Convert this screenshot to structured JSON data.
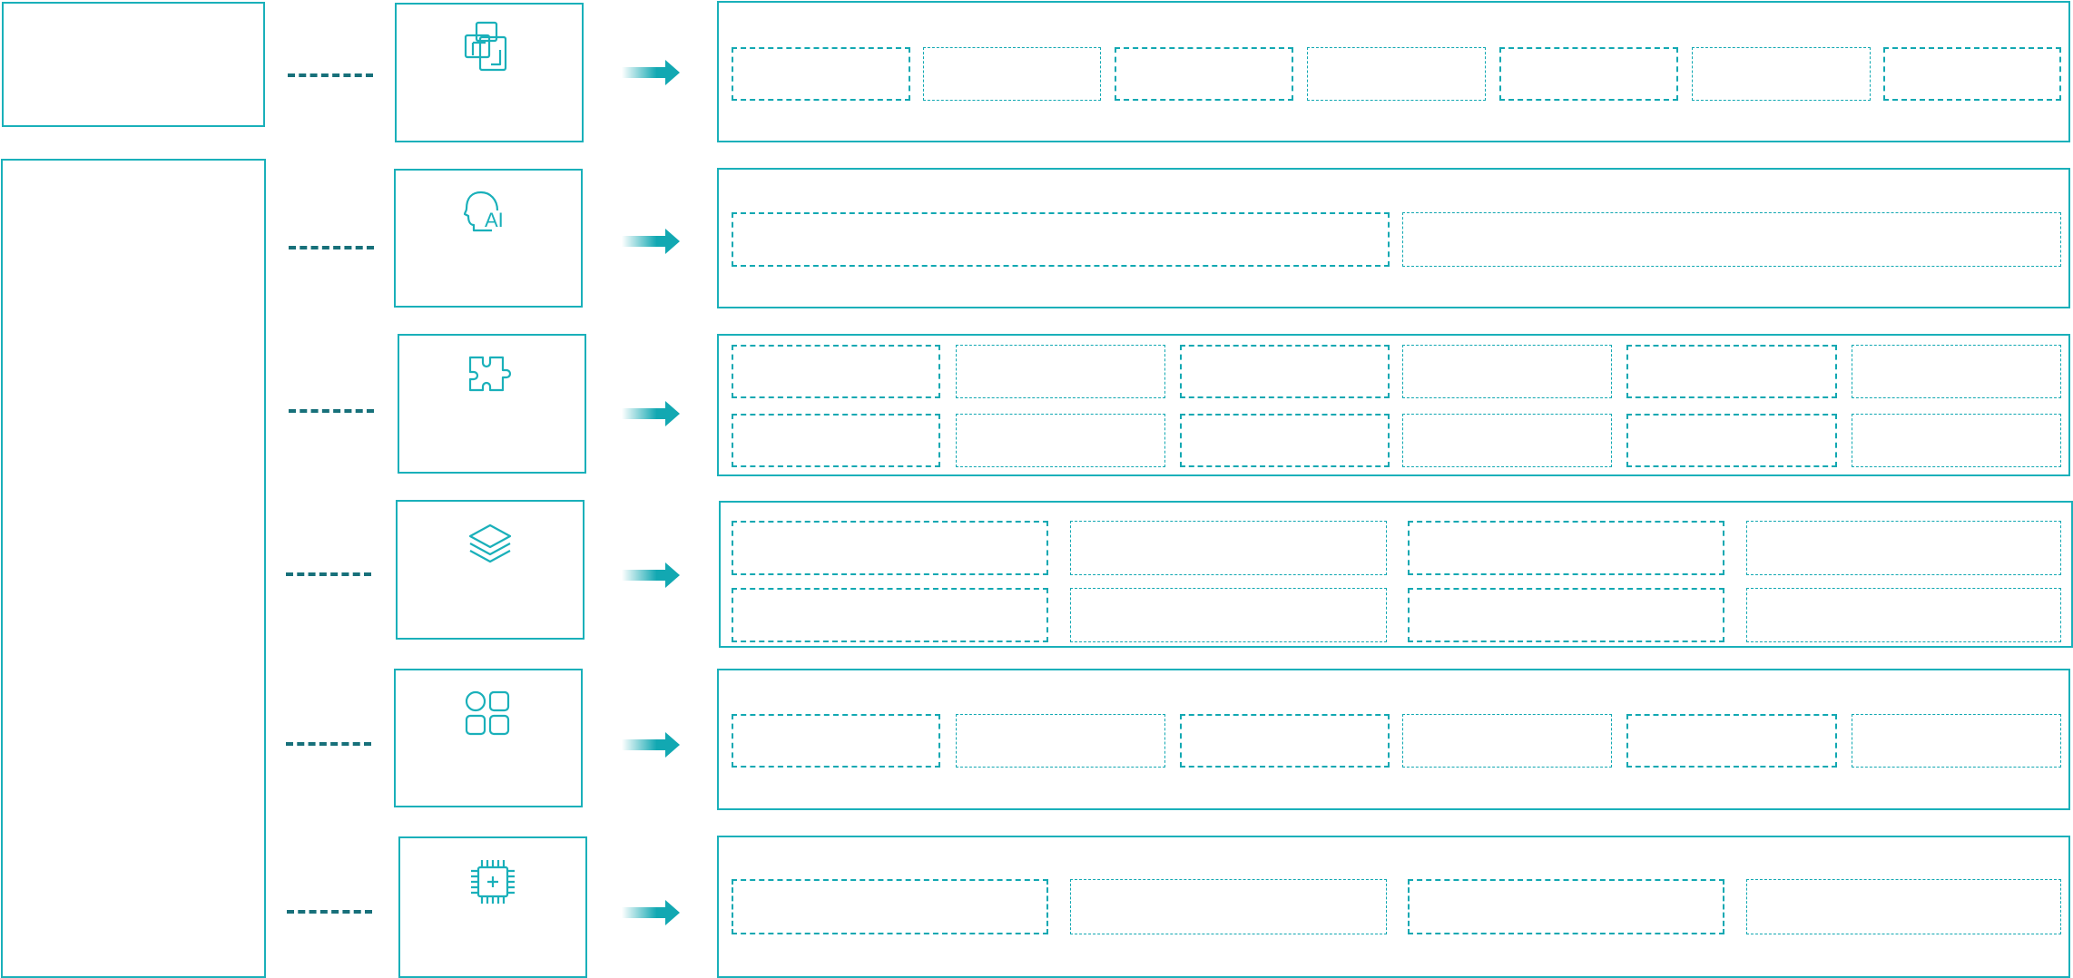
{
  "colors": {
    "border": "#1ab0ba",
    "connector": "#17707a",
    "arrow": "#12a8b2"
  },
  "rows": [
    {
      "icon": "copy-windows-icon",
      "boxes": 7
    },
    {
      "icon": "ai-head-icon",
      "boxes": 2
    },
    {
      "icon": "puzzle-icon",
      "boxes": 12
    },
    {
      "icon": "layers-icon",
      "boxes": 8
    },
    {
      "icon": "apps-grid-icon",
      "boxes": 6
    },
    {
      "icon": "chip-icon",
      "boxes": 4
    }
  ]
}
